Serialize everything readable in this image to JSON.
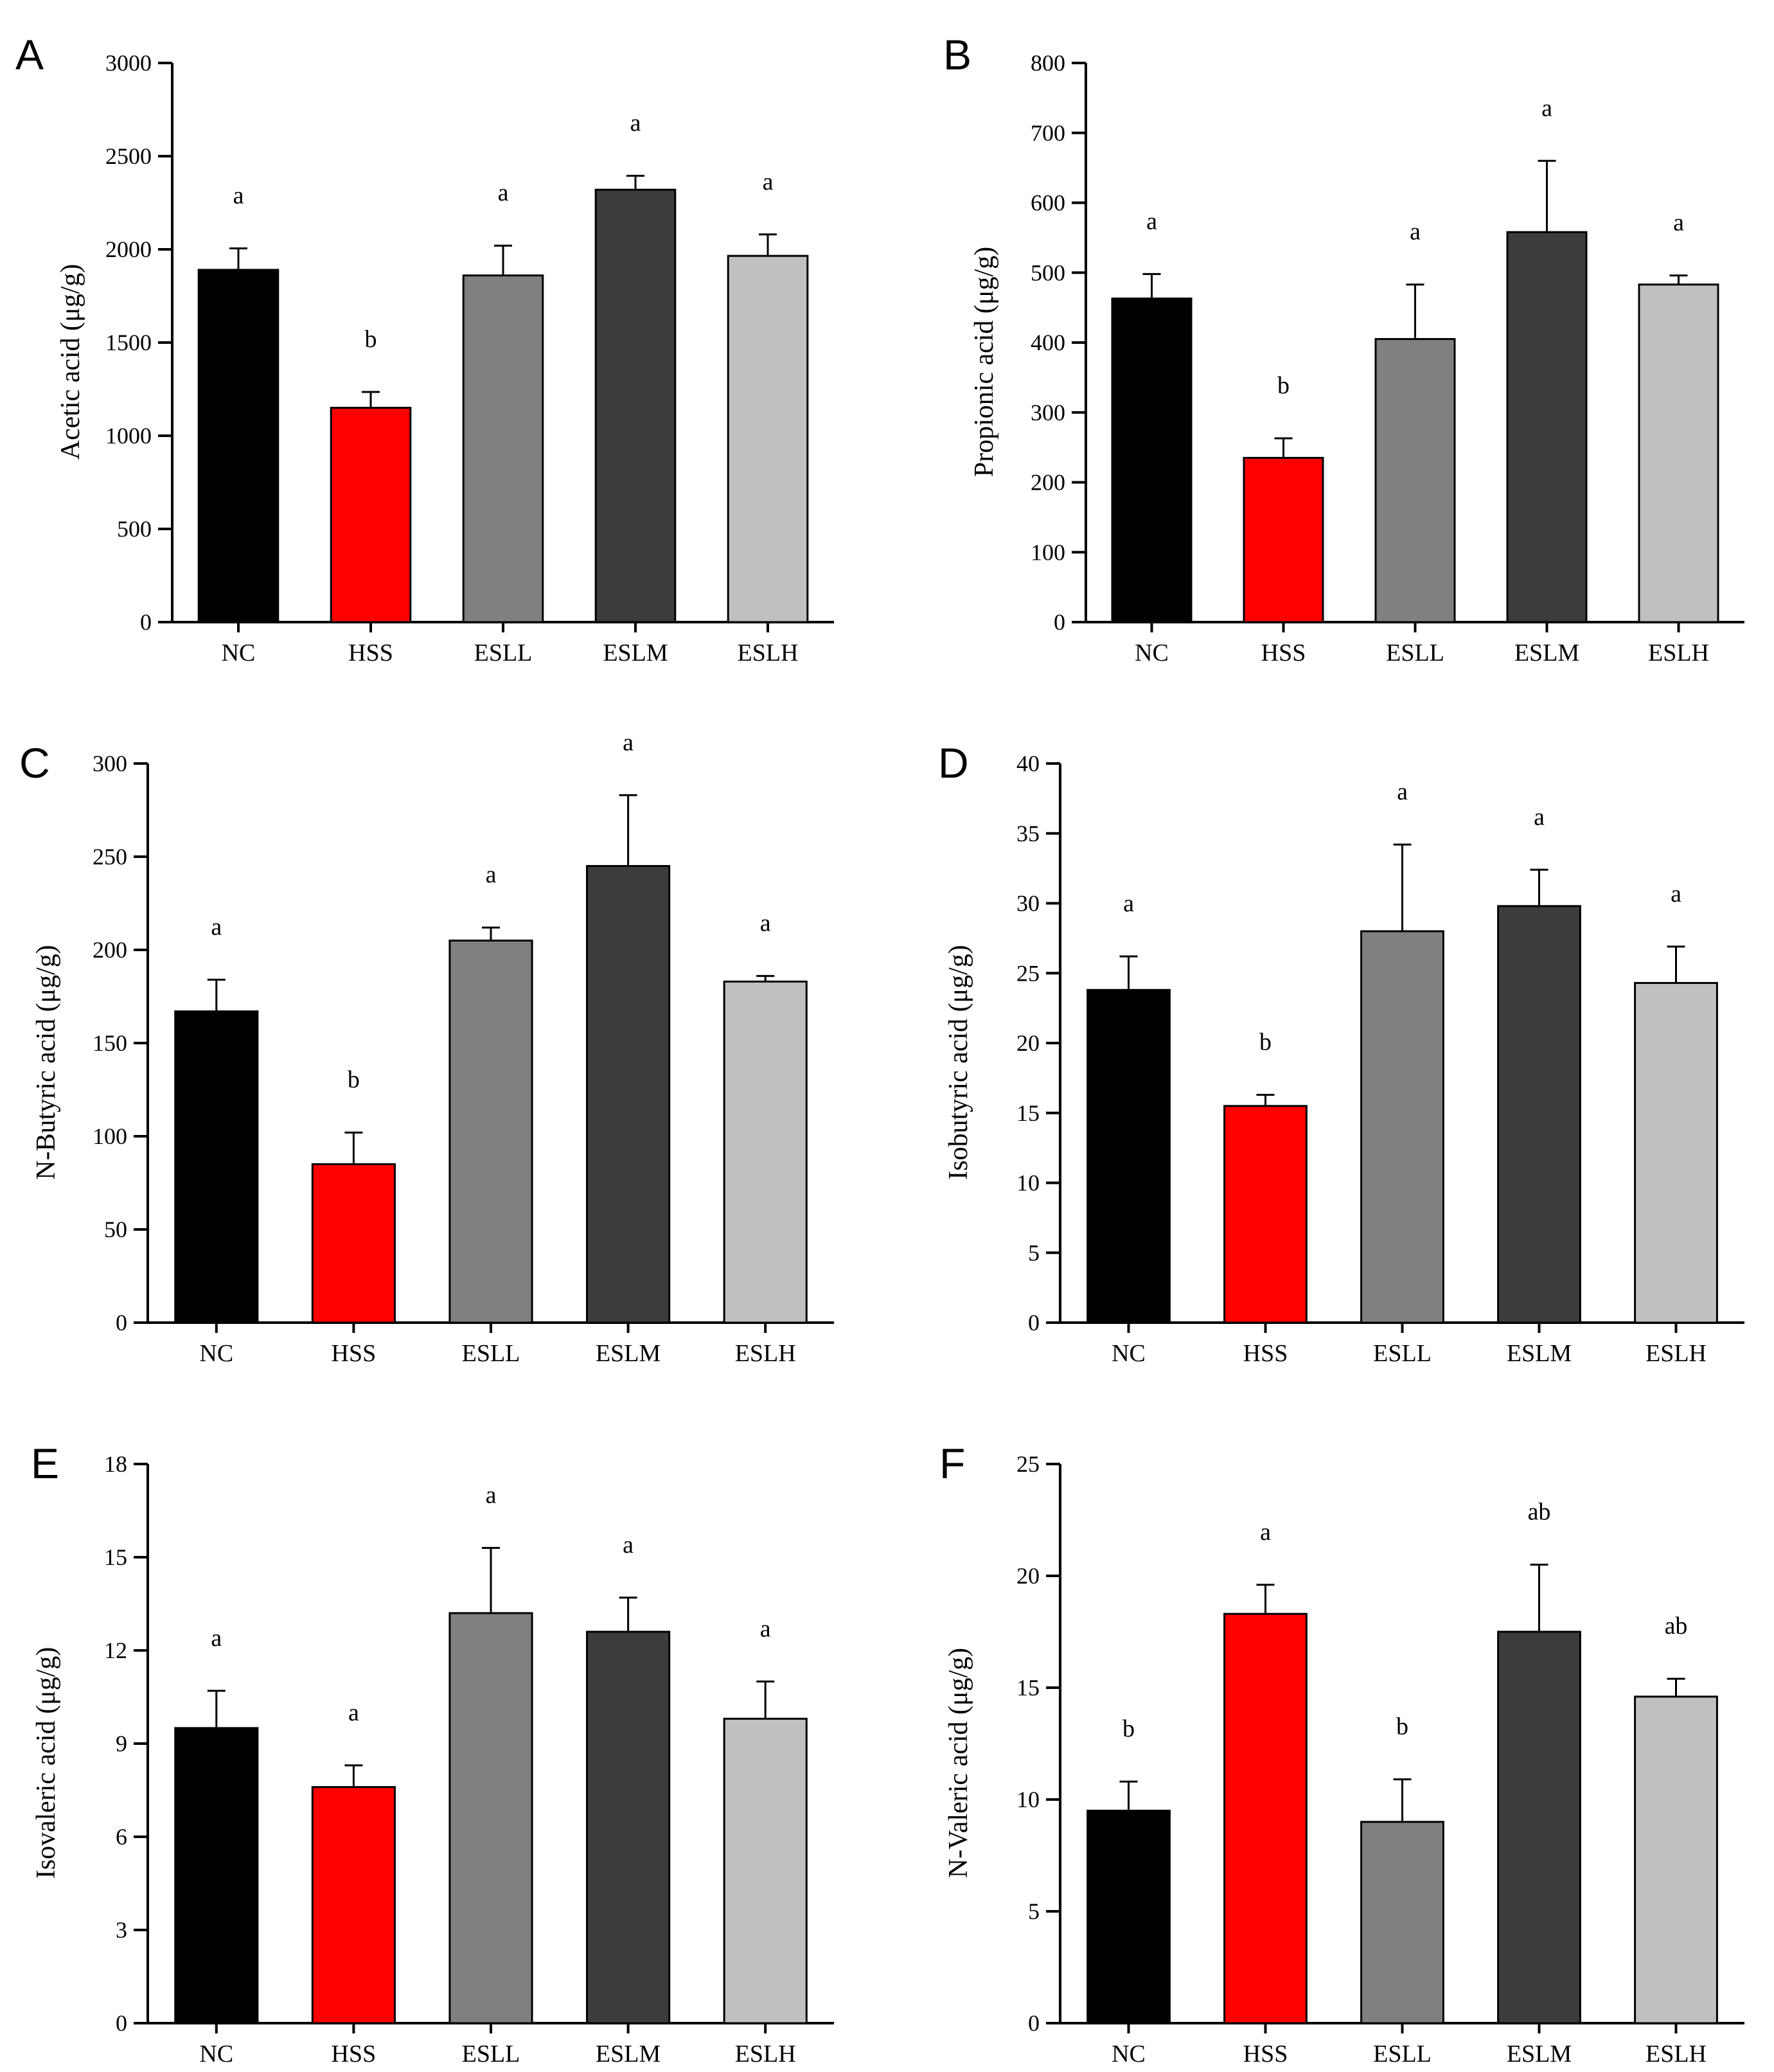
{
  "chart_data": [
    {
      "type": "bar",
      "panel": "A",
      "categories": [
        "NC",
        "HSS",
        "ESLL",
        "ESLM",
        "ESLH"
      ],
      "values": [
        1890,
        1150,
        1860,
        2320,
        1965
      ],
      "errors": [
        115,
        85,
        160,
        75,
        115
      ],
      "sig": [
        "a",
        "b",
        "a",
        "a",
        "a"
      ],
      "colors": [
        "#000000",
        "#ff0000",
        "#808080",
        "#3c3c3c",
        "#c0c0c0"
      ],
      "ylabel": "Acetic acid (μg/g)",
      "ylim": [
        0,
        3000
      ],
      "yticks": [
        0,
        500,
        1000,
        1500,
        2000,
        2500,
        3000
      ]
    },
    {
      "type": "bar",
      "panel": "B",
      "categories": [
        "NC",
        "HSS",
        "ESLL",
        "ESLM",
        "ESLH"
      ],
      "values": [
        463,
        235,
        405,
        558,
        483
      ],
      "errors": [
        35,
        28,
        78,
        102,
        13
      ],
      "sig": [
        "a",
        "b",
        "a",
        "a",
        "a"
      ],
      "colors": [
        "#000000",
        "#ff0000",
        "#808080",
        "#3c3c3c",
        "#c0c0c0"
      ],
      "ylabel": "Propionic acid (μg/g)",
      "ylim": [
        0,
        800
      ],
      "yticks": [
        0,
        100,
        200,
        300,
        400,
        500,
        600,
        700,
        800
      ]
    },
    {
      "type": "bar",
      "panel": "C",
      "categories": [
        "NC",
        "HSS",
        "ESLL",
        "ESLM",
        "ESLH"
      ],
      "values": [
        167,
        85,
        205,
        245,
        183
      ],
      "errors": [
        17,
        17,
        7,
        38,
        3
      ],
      "sig": [
        "a",
        "b",
        "a",
        "a",
        "a"
      ],
      "colors": [
        "#000000",
        "#ff0000",
        "#808080",
        "#3c3c3c",
        "#c0c0c0"
      ],
      "ylabel": "N-Butyric acid (μg/g)",
      "ylim": [
        0,
        300
      ],
      "yticks": [
        0,
        50,
        100,
        150,
        200,
        250,
        300
      ]
    },
    {
      "type": "bar",
      "panel": "D",
      "categories": [
        "NC",
        "HSS",
        "ESLL",
        "ESLM",
        "ESLH"
      ],
      "values": [
        23.8,
        15.5,
        28.0,
        29.8,
        24.3
      ],
      "errors": [
        2.4,
        0.8,
        6.2,
        2.6,
        2.6
      ],
      "sig": [
        "a",
        "b",
        "a",
        "a",
        "a"
      ],
      "colors": [
        "#000000",
        "#ff0000",
        "#808080",
        "#3c3c3c",
        "#c0c0c0"
      ],
      "ylabel": "Isobutyric acid (μg/g)",
      "ylim": [
        0,
        40
      ],
      "yticks": [
        0,
        5,
        10,
        15,
        20,
        25,
        30,
        35,
        40
      ]
    },
    {
      "type": "bar",
      "panel": "E",
      "categories": [
        "NC",
        "HSS",
        "ESLL",
        "ESLM",
        "ESLH"
      ],
      "values": [
        9.5,
        7.6,
        13.2,
        12.6,
        9.8
      ],
      "errors": [
        1.2,
        0.7,
        2.1,
        1.1,
        1.2
      ],
      "sig": [
        "a",
        "a",
        "a",
        "a",
        "a"
      ],
      "colors": [
        "#000000",
        "#ff0000",
        "#808080",
        "#3c3c3c",
        "#c0c0c0"
      ],
      "ylabel": "Isovaleric acid (μg/g)",
      "ylim": [
        0,
        18
      ],
      "yticks": [
        0,
        3,
        6,
        9,
        12,
        15,
        18
      ]
    },
    {
      "type": "bar",
      "panel": "F",
      "categories": [
        "NC",
        "HSS",
        "ESLL",
        "ESLM",
        "ESLH"
      ],
      "values": [
        9.5,
        18.3,
        9.0,
        17.5,
        14.6
      ],
      "errors": [
        1.3,
        1.3,
        1.9,
        3.0,
        0.8
      ],
      "sig": [
        "b",
        "a",
        "b",
        "ab",
        "ab"
      ],
      "colors": [
        "#000000",
        "#ff0000",
        "#808080",
        "#3c3c3c",
        "#c0c0c0"
      ],
      "ylabel": "N-Valeric acid (μg/g)",
      "ylim": [
        0,
        25
      ],
      "yticks": [
        0,
        5,
        10,
        15,
        20,
        25
      ]
    }
  ]
}
